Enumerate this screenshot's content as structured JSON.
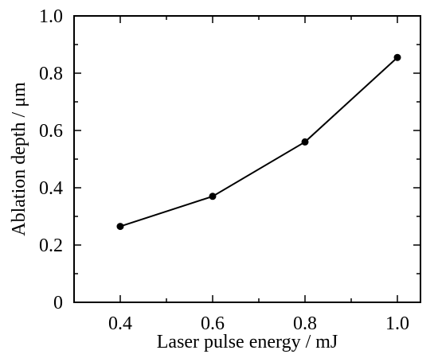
{
  "chart_data": {
    "type": "line",
    "title": "",
    "xlabel": "Laser pulse energy / mJ",
    "ylabel": "Ablation depth / μm",
    "xlim": [
      0.3,
      1.05
    ],
    "ylim": [
      0,
      1.0
    ],
    "x_ticks": [
      "0.4",
      "0.6",
      "0.8",
      "1.0"
    ],
    "y_ticks": [
      "0",
      "0.2",
      "0.4",
      "0.6",
      "0.8",
      "1.0"
    ],
    "grid": false,
    "legend": "none",
    "series": [
      {
        "x": [
          0.4,
          0.6,
          0.8,
          1.0
        ],
        "y": [
          0.265,
          0.37,
          0.56,
          0.855
        ],
        "color": "#000000",
        "marker": "filled-circle"
      }
    ]
  }
}
